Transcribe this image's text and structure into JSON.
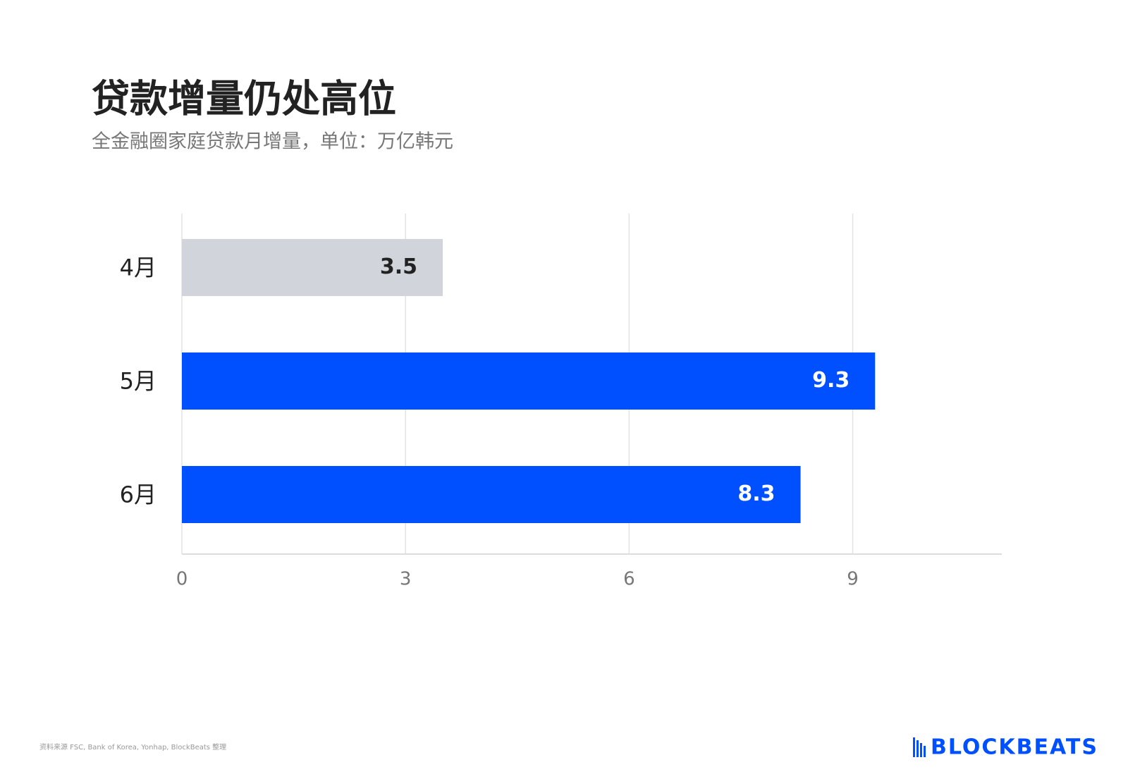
{
  "chart_data": {
    "type": "bar",
    "orientation": "horizontal",
    "title": "贷款增量仍处高位",
    "subtitle": "全金融圈家庭贷款月增量，单位：万亿韩元",
    "categories": [
      "4月",
      "5月",
      "6月"
    ],
    "values": [
      3.5,
      9.3,
      8.3
    ],
    "colors": [
      "#d1d5db",
      "#0050ff",
      "#0050ff"
    ],
    "xlim": [
      0,
      11
    ],
    "xticks": [
      0,
      3,
      6,
      9
    ],
    "grid": true,
    "source": "资料来源 FSC, Bank of Korea, Yonhap, BlockBeats 整理",
    "logo": "BLOCKBEATS"
  }
}
